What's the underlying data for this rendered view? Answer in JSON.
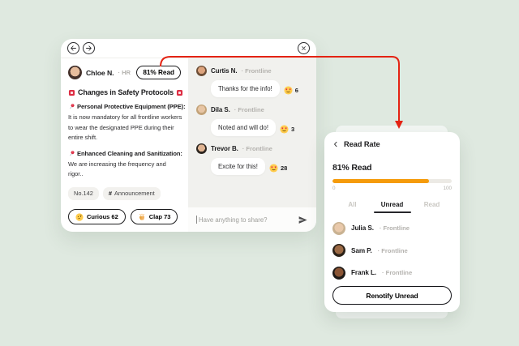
{
  "palette": {
    "background": "#dfe9e0",
    "accent_orange": "#F59B0B",
    "annotation_arrow_red": "#E42313",
    "chat_background": "#f1f1ee"
  },
  "main_card": {
    "post": {
      "author_name": "Chloe N.",
      "author_role": "· HR",
      "read_rate_button": "81% Read",
      "title": "Changes in Safety Protocols",
      "sections": [
        {
          "heading": "Personal Protective Equipment (PPE):",
          "body": "It is now mandatory for all frontline workers to wear the designated PPE during their entire shift."
        },
        {
          "heading": "Enhanced Cleaning and Sanitization:",
          "body": "We are increasing the frequency and rigor.."
        }
      ],
      "tags": {
        "number": "No.142",
        "hash": "#",
        "channel": "Announcement"
      },
      "reactions": [
        {
          "label": "Curious 62"
        },
        {
          "label": "Clap 73"
        }
      ]
    },
    "chat": {
      "messages": [
        {
          "name": "Curtis N.",
          "role": "· Frontline",
          "text": "Thanks for the info!",
          "reaction_count": "6"
        },
        {
          "name": "Dila S.",
          "role": "· Frontline",
          "text": "Noted and will do!",
          "reaction_count": "3"
        },
        {
          "name": "Trevor B.",
          "role": "· Frontline",
          "text": "Excite for this!",
          "reaction_count": "28"
        }
      ],
      "input_placeholder": "Have anything to share?"
    }
  },
  "read_rate_panel": {
    "title": "Read Rate",
    "percent_label": "81% Read",
    "progress_percent": 81,
    "scale_min": "0",
    "scale_max": "100",
    "tabs": [
      {
        "label": "All"
      },
      {
        "label": "Unread"
      },
      {
        "label": "Read"
      }
    ],
    "members": [
      {
        "name": "Julia S.",
        "role": "· Frontline"
      },
      {
        "name": "Sam P.",
        "role": "· Frontline"
      },
      {
        "name": "Frank L.",
        "role": "· Frontline"
      }
    ],
    "renotify_button": "Renotify Unread"
  },
  "avatars": {
    "chloe": {
      "skin": "#e7bd9d",
      "hair": "#43302a"
    },
    "curtis": {
      "skin": "#dda47e",
      "hair": "#6e4f37"
    },
    "dila": {
      "skin": "#e7c5a4",
      "hair": "#c3a379"
    },
    "trevor": {
      "skin": "#e0b492",
      "hair": "#2d2620"
    },
    "julia": {
      "skin": "#e9c9ab",
      "hair": "#c9b292"
    },
    "sam": {
      "skin": "#9c6a45",
      "hair": "#2b2118"
    },
    "frank": {
      "skin": "#8a5535",
      "hair": "#1e1a17"
    }
  }
}
